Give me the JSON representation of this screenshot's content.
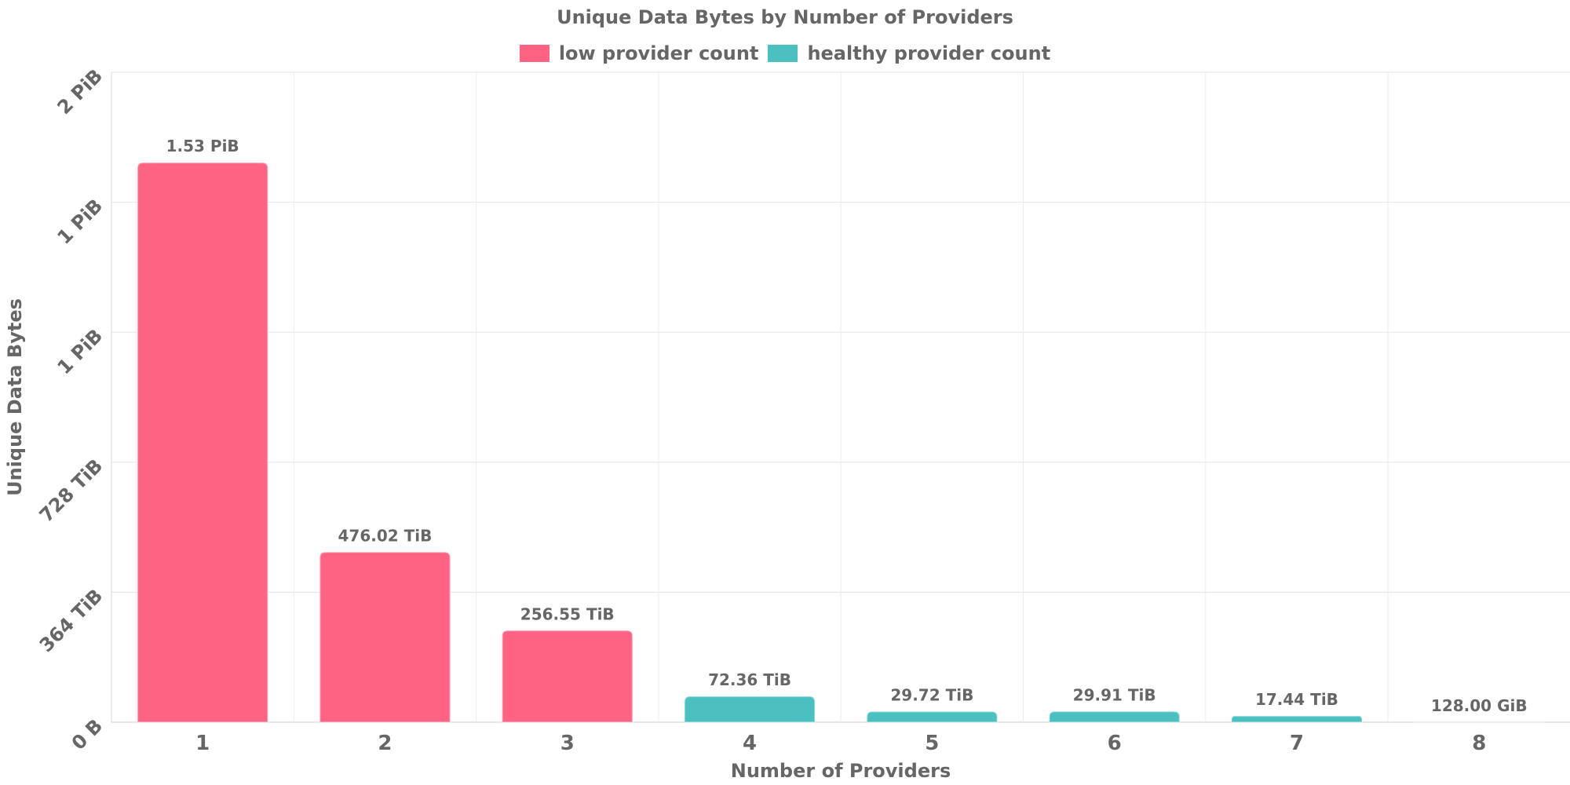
{
  "chart_data": {
    "type": "bar",
    "title": "Unique Data Bytes by Number of Providers",
    "xlabel": "Number of Providers",
    "ylabel": "Unique Data Bytes",
    "categories": [
      "1",
      "2",
      "3",
      "4",
      "5",
      "6",
      "7",
      "8"
    ],
    "values_tib": [
      1566.72,
      476.02,
      256.55,
      72.36,
      29.72,
      29.91,
      17.44,
      0.125
    ],
    "data_labels": [
      "1.53 PiB",
      "476.02 TiB",
      "256.55 TiB",
      "72.36 TiB",
      "29.72 TiB",
      "29.91 TiB",
      "17.44 TiB",
      "128.00 GiB"
    ],
    "bar_series": [
      "low",
      "low",
      "low",
      "healthy",
      "healthy",
      "healthy",
      "healthy",
      "healthy"
    ],
    "y_ticks": [
      {
        "value_tib": 0,
        "label": "0 B"
      },
      {
        "value_tib": 364,
        "label": "364 TiB"
      },
      {
        "value_tib": 728,
        "label": "728 TiB"
      },
      {
        "value_tib": 1092,
        "label": "1 PiB"
      },
      {
        "value_tib": 1456,
        "label": "1 PiB"
      },
      {
        "value_tib": 1820,
        "label": "2 PiB"
      }
    ],
    "ylim_tib": [
      0,
      1820
    ],
    "grid": true,
    "legend_position": "top-center",
    "series": [
      {
        "key": "low",
        "name": "low provider count",
        "color": "#ff6384"
      },
      {
        "key": "healthy",
        "name": "healthy provider count",
        "color": "#4bc0c0"
      }
    ]
  }
}
